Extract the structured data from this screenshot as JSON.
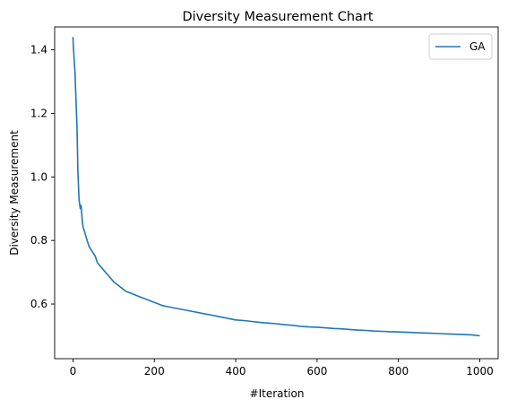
{
  "chart_data": {
    "type": "line",
    "title": "Diversity Measurement Chart",
    "xlabel": "#Iteration",
    "ylabel": "Diversity Measurement",
    "xlim": [
      -45,
      1045
    ],
    "ylim": [
      0.428,
      1.472
    ],
    "xticks": [
      0,
      200,
      400,
      600,
      800,
      1000
    ],
    "xtick_labels": [
      "0",
      "200",
      "400",
      "600",
      "800",
      "1000"
    ],
    "yticks": [
      0.6,
      0.8,
      1.0,
      1.2,
      1.4
    ],
    "ytick_labels": [
      "0.6",
      "0.8",
      "1.0",
      "1.2",
      "1.4"
    ],
    "grid": false,
    "legend": {
      "placement": "top-right"
    },
    "series": [
      {
        "name": "GA",
        "color": "#1f77b4",
        "x": [
          0,
          2,
          5,
          8,
          10,
          12,
          15,
          18,
          20,
          23,
          25,
          28,
          30,
          35,
          40,
          45,
          50,
          55,
          60,
          70,
          80,
          90,
          100,
          110,
          120,
          130,
          140,
          150,
          160,
          170,
          180,
          190,
          200,
          220,
          240,
          260,
          280,
          300,
          320,
          340,
          360,
          380,
          400,
          420,
          440,
          460,
          480,
          500,
          520,
          540,
          560,
          580,
          600,
          620,
          640,
          660,
          680,
          700,
          720,
          740,
          760,
          780,
          800,
          820,
          840,
          860,
          880,
          900,
          920,
          940,
          960,
          980,
          1000
        ],
        "y": [
          1.44,
          1.39,
          1.33,
          1.22,
          1.15,
          1.02,
          0.93,
          0.9,
          0.91,
          0.86,
          0.84,
          0.83,
          0.82,
          0.8,
          0.78,
          0.77,
          0.76,
          0.75,
          0.73,
          0.715,
          0.7,
          0.685,
          0.67,
          0.66,
          0.65,
          0.64,
          0.635,
          0.63,
          0.625,
          0.62,
          0.615,
          0.61,
          0.605,
          0.595,
          0.59,
          0.585,
          0.58,
          0.575,
          0.57,
          0.565,
          0.56,
          0.555,
          0.55,
          0.548,
          0.545,
          0.542,
          0.54,
          0.538,
          0.535,
          0.533,
          0.53,
          0.528,
          0.527,
          0.525,
          0.523,
          0.522,
          0.52,
          0.518,
          0.517,
          0.515,
          0.514,
          0.513,
          0.512,
          0.511,
          0.51,
          0.509,
          0.508,
          0.507,
          0.506,
          0.505,
          0.504,
          0.503,
          0.5
        ]
      }
    ]
  }
}
